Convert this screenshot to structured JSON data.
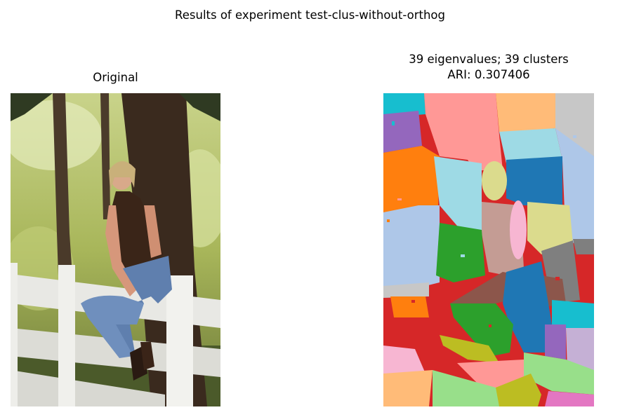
{
  "figure": {
    "title": "Results of experiment test-clus-without-orthog"
  },
  "left_panel": {
    "title": "Original"
  },
  "right_panel": {
    "title_line1": "39 eigenvalues; 39 clusters",
    "title_line2": "ARI: 0.307406"
  },
  "colors": {
    "cyan": "#17becf",
    "pink": "#ff9896",
    "peach": "#ffbb78",
    "gray": "#c7c7c7",
    "purple": "#9467bd",
    "orange": "#ff7f0e",
    "lightblue": "#9edae5",
    "blue": "#1f77b4",
    "steel": "#aec7e8",
    "khaki": "#dbdb8d",
    "brown": "#8c564b",
    "rosybrown": "#c49c94",
    "green": "#2ca02c",
    "red": "#d62728",
    "darkgray": "#7f7f7f",
    "lilac": "#c5b0d5",
    "lightpink": "#f7b6d2",
    "lightgreen": "#98df8a",
    "olive": "#bcbd22",
    "magenta": "#e377c2"
  }
}
